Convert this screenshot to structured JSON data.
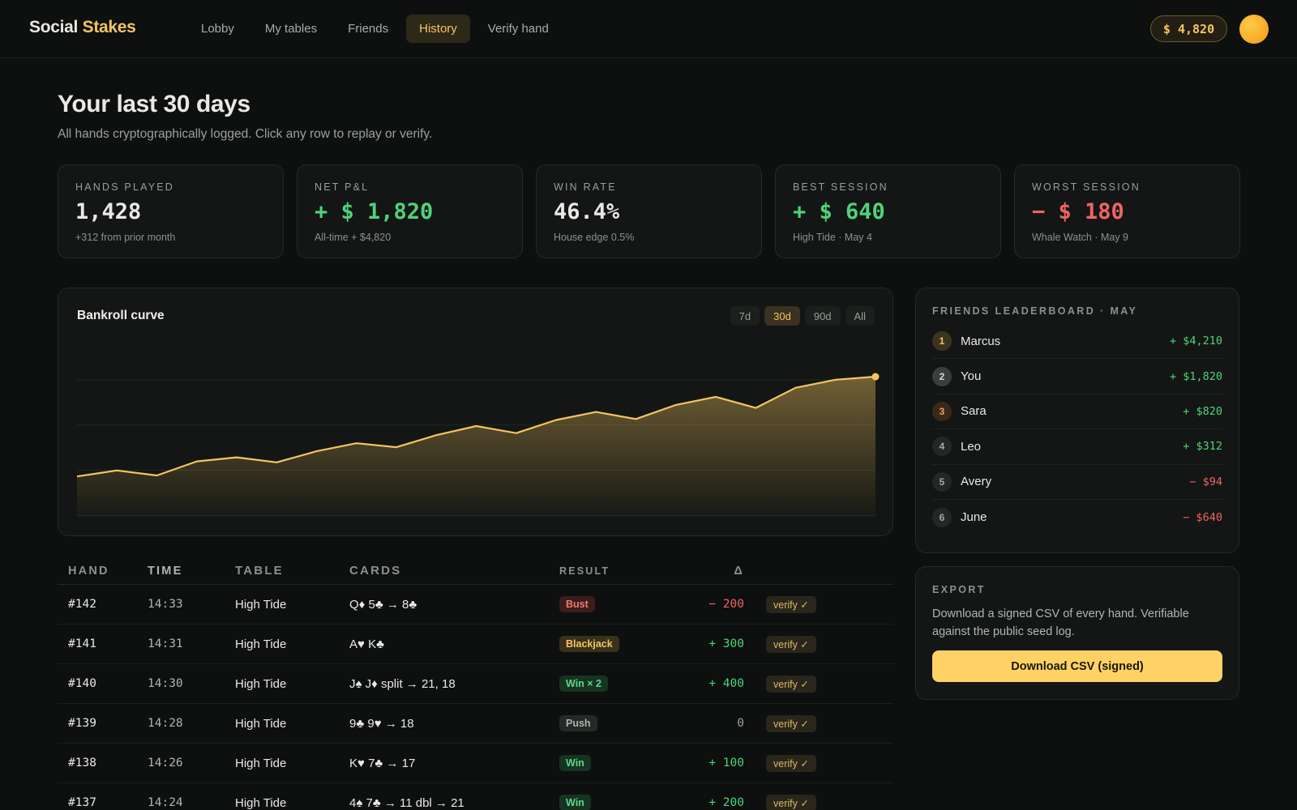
{
  "brand": {
    "part1": "Social",
    "part2": "Stakes"
  },
  "nav": [
    {
      "label": "Lobby",
      "active": false
    },
    {
      "label": "My tables",
      "active": false
    },
    {
      "label": "Friends",
      "active": false
    },
    {
      "label": "History",
      "active": true
    },
    {
      "label": "Verify hand",
      "active": false
    }
  ],
  "balance": "$ 4,820",
  "heading": {
    "title": "Your last 30 days",
    "subtitle": "All hands cryptographically logged. Click any row to replay or verify."
  },
  "stats": [
    {
      "label": "Hands played",
      "value": "1,428",
      "note": "+312 from prior month",
      "tone": ""
    },
    {
      "label": "Net P&L",
      "value": "+ $ 1,820",
      "note": "All-time + $4,820",
      "tone": "pos"
    },
    {
      "label": "Win rate",
      "value": "46.4%",
      "note": "House edge 0.5%",
      "tone": ""
    },
    {
      "label": "Best session",
      "value": "+ $ 640",
      "note": "High Tide · May 4",
      "tone": "pos"
    },
    {
      "label": "Worst session",
      "value": "− $ 180",
      "note": "Whale Watch · May 9",
      "tone": "neg"
    }
  ],
  "chart": {
    "title": "Bankroll curve",
    "ranges": [
      {
        "label": "7d",
        "active": false
      },
      {
        "label": "30d",
        "active": true
      },
      {
        "label": "90d",
        "active": false
      },
      {
        "label": "All",
        "active": false
      }
    ]
  },
  "chart_data": {
    "type": "area",
    "x": [
      1,
      2,
      3,
      4,
      5,
      6,
      7,
      8,
      9,
      10,
      11,
      12,
      13,
      14,
      15,
      16,
      17,
      18,
      19,
      20,
      21
    ],
    "series": [
      {
        "values": [
          3000,
          3060,
          3010,
          3150,
          3190,
          3140,
          3250,
          3330,
          3290,
          3410,
          3500,
          3430,
          3560,
          3640,
          3570,
          3710,
          3790,
          3680,
          3880,
          3960,
          3990
        ]
      }
    ],
    "ylim": [
      2600,
      4400
    ],
    "grid": true,
    "color": "#f4c560"
  },
  "table": {
    "headers": [
      "Hand",
      "Time",
      "Table",
      "Cards",
      "Result",
      "Δ"
    ],
    "rows": [
      {
        "hand": "#142",
        "time": "14:33",
        "table": "High Tide",
        "cards": "Q♦ 5♣ → 8♣",
        "result": "Bust",
        "result_kind": "bust",
        "delta": "− 200",
        "tone": "neg",
        "verify": "verify ✓"
      },
      {
        "hand": "#141",
        "time": "14:31",
        "table": "High Tide",
        "cards": "A♥ K♣",
        "result": "Blackjack",
        "result_kind": "blackjack",
        "delta": "+ 300",
        "tone": "pos",
        "verify": "verify ✓"
      },
      {
        "hand": "#140",
        "time": "14:30",
        "table": "High Tide",
        "cards": "J♠ J♦ split → 21, 18",
        "result": "Win × 2",
        "result_kind": "win",
        "delta": "+ 400",
        "tone": "pos",
        "verify": "verify ✓"
      },
      {
        "hand": "#139",
        "time": "14:28",
        "table": "High Tide",
        "cards": "9♣ 9♥ → 18",
        "result": "Push",
        "result_kind": "push",
        "delta": "0",
        "tone": "neutral",
        "verify": "verify ✓"
      },
      {
        "hand": "#138",
        "time": "14:26",
        "table": "High Tide",
        "cards": "K♥ 7♣ → 17",
        "result": "Win",
        "result_kind": "win",
        "delta": "+ 100",
        "tone": "pos",
        "verify": "verify ✓"
      },
      {
        "hand": "#137",
        "time": "14:24",
        "table": "High Tide",
        "cards": "4♠ 7♣ → 11 dbl → 21",
        "result": "Win",
        "result_kind": "win",
        "delta": "+ 200",
        "tone": "pos",
        "verify": "verify ✓"
      }
    ]
  },
  "leaderboard": {
    "title": "Friends leaderboard · May",
    "entries": [
      {
        "rank": "1",
        "name": "Marcus",
        "amount": "+ $4,210",
        "tone": "pos"
      },
      {
        "rank": "2",
        "name": "You",
        "amount": "+ $1,820",
        "tone": "pos"
      },
      {
        "rank": "3",
        "name": "Sara",
        "amount": "+ $820",
        "tone": "pos"
      },
      {
        "rank": "4",
        "name": "Leo",
        "amount": "+ $312",
        "tone": "pos"
      },
      {
        "rank": "5",
        "name": "Avery",
        "amount": "− $94",
        "tone": "neg"
      },
      {
        "rank": "6",
        "name": "June",
        "amount": "− $640",
        "tone": "neg"
      }
    ]
  },
  "export": {
    "title": "Export",
    "text": "Download a signed CSV of every hand. Verifiable against the public seed log.",
    "button": "Download CSV (signed)"
  }
}
